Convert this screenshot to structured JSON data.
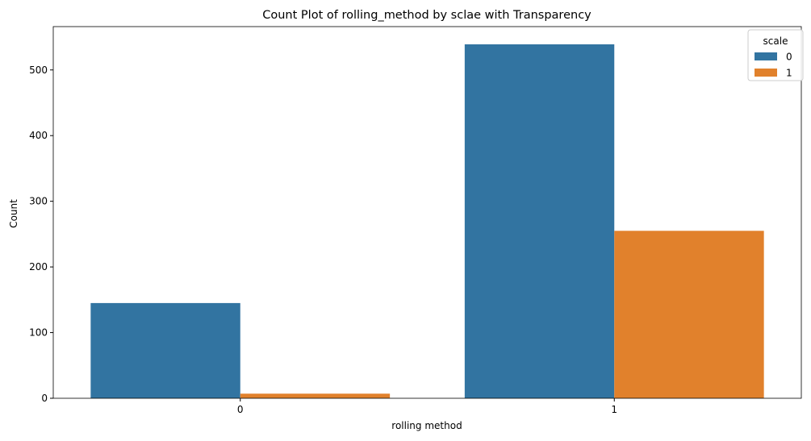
{
  "chart_data": {
    "type": "bar",
    "title": "Count Plot of rolling_method by sclae with Transparency",
    "xlabel": "rolling method",
    "ylabel": "Count",
    "categories": [
      "0",
      "1"
    ],
    "series": [
      {
        "name": "0",
        "values": [
          145,
          539
        ],
        "color": "#3274a1"
      },
      {
        "name": "1",
        "values": [
          7,
          255
        ],
        "color": "#e1812c"
      }
    ],
    "yticks": [
      0,
      100,
      200,
      300,
      400,
      500
    ],
    "ylim": [
      0,
      566
    ],
    "grid": false,
    "legend": {
      "title": "scale",
      "placement": "upper right"
    }
  }
}
